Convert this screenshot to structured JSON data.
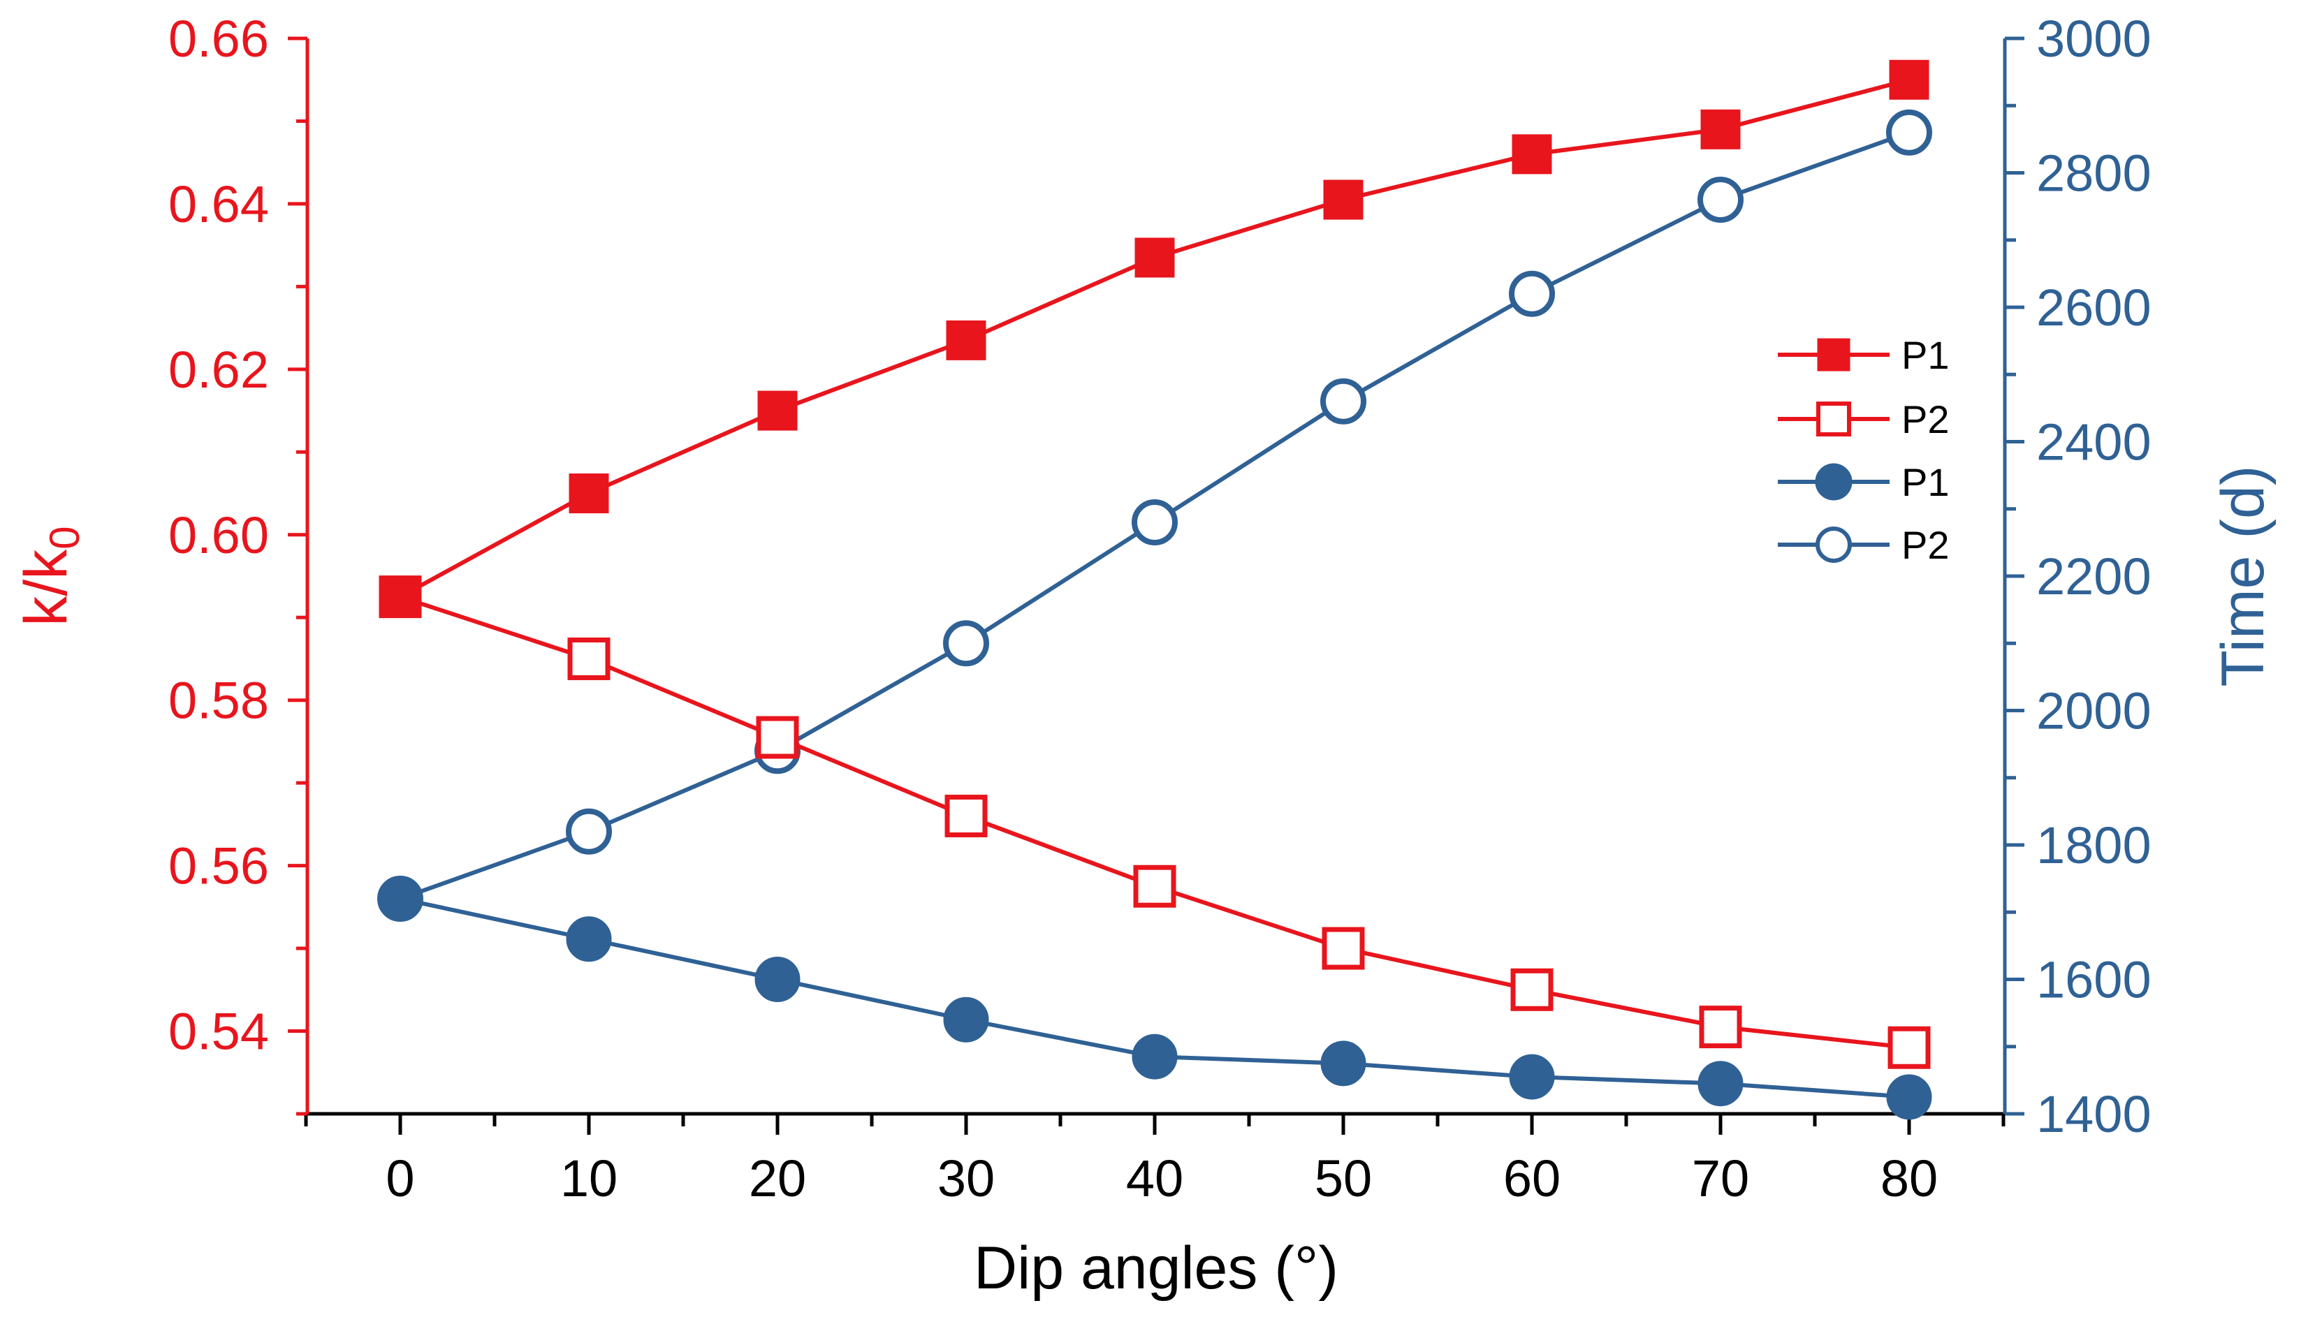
{
  "chart_data": {
    "type": "line",
    "x": [
      0,
      10,
      20,
      30,
      40,
      50,
      60,
      70,
      80
    ],
    "xlabel": "Dip angles (°)",
    "xlim": [
      -5,
      85
    ],
    "xticks": [
      0,
      10,
      20,
      30,
      40,
      50,
      60,
      70,
      80
    ],
    "left_axis": {
      "label_main": "k/k",
      "label_sub": "0",
      "ylim": [
        0.53,
        0.66
      ],
      "ticks": [
        "0.54",
        "0.56",
        "0.58",
        "0.60",
        "0.62",
        "0.64",
        "0.66"
      ],
      "color": "#e8151d"
    },
    "right_axis": {
      "label": "Time (d)",
      "ylim": [
        1400,
        3000
      ],
      "ticks": [
        "1400",
        "1600",
        "1800",
        "2000",
        "2200",
        "2400",
        "2600",
        "2800",
        "3000"
      ],
      "color": "#2f6195"
    },
    "series": [
      {
        "name": "P1",
        "axis": "left",
        "marker": "square-filled",
        "values": [
          0.5925,
          0.605,
          0.615,
          0.6235,
          0.6335,
          0.6405,
          0.646,
          0.649,
          0.655
        ]
      },
      {
        "name": "P2",
        "axis": "left",
        "marker": "square-open",
        "values": [
          0.5925,
          0.585,
          0.5755,
          0.566,
          0.5575,
          0.55,
          0.545,
          0.5405,
          0.538
        ]
      },
      {
        "name": "P1",
        "axis": "right",
        "marker": "circle-filled",
        "values": [
          1720,
          1660,
          1600,
          1540,
          1485,
          1475,
          1455,
          1445,
          1425
        ]
      },
      {
        "name": "P2",
        "axis": "right",
        "marker": "circle-open",
        "values": [
          1720,
          1820,
          1940,
          2100,
          2280,
          2460,
          2620,
          2760,
          2860
        ]
      }
    ],
    "legend_position": "right-upper"
  }
}
